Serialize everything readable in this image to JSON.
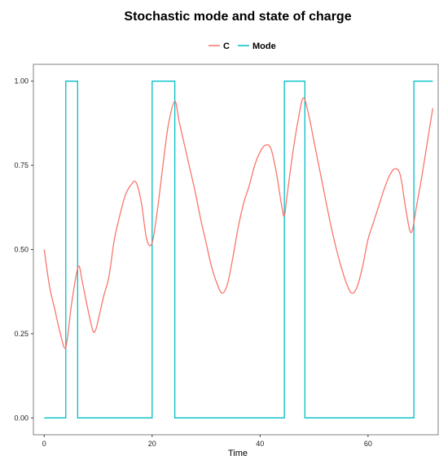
{
  "chart_data": {
    "type": "line",
    "title": "Stochastic mode and state of charge",
    "xlabel": "Time",
    "ylabel": "",
    "xlim": [
      -2,
      73
    ],
    "ylim": [
      -0.05,
      1.05
    ],
    "x_ticks": [
      0,
      20,
      40,
      60
    ],
    "x_tick_labels": [
      "0",
      "20",
      "40",
      "60"
    ],
    "y_ticks": [
      0.0,
      0.25,
      0.5,
      0.75,
      1.0
    ],
    "y_tick_labels": [
      "0.00",
      "0.25",
      "0.50",
      "0.75",
      "1.00"
    ],
    "legend_position": "top",
    "grid": false,
    "series": [
      {
        "name": "C",
        "color": "#F8766D",
        "x": [
          0,
          1,
          2,
          3,
          4,
          5,
          6,
          6.5,
          7,
          8,
          9,
          9.5,
          10,
          11,
          12,
          13,
          14,
          15,
          16,
          17,
          18,
          19,
          20,
          21,
          22,
          23,
          24.2,
          25,
          26,
          27,
          28,
          29,
          30,
          31,
          32,
          33,
          34,
          35,
          36,
          37,
          38,
          39,
          40,
          41,
          42,
          43,
          44,
          44.5,
          45,
          46,
          47,
          48,
          49,
          50,
          51,
          52,
          53,
          54,
          55,
          56,
          57,
          58,
          59,
          60,
          61,
          62,
          63,
          64,
          65,
          66,
          67,
          68,
          69,
          70,
          71,
          72
        ],
        "values": [
          0.5,
          0.39,
          0.32,
          0.25,
          0.21,
          0.33,
          0.43,
          0.45,
          0.41,
          0.33,
          0.26,
          0.26,
          0.29,
          0.36,
          0.42,
          0.53,
          0.6,
          0.66,
          0.69,
          0.7,
          0.64,
          0.53,
          0.52,
          0.62,
          0.75,
          0.87,
          0.94,
          0.88,
          0.81,
          0.74,
          0.67,
          0.59,
          0.52,
          0.45,
          0.4,
          0.37,
          0.4,
          0.48,
          0.57,
          0.64,
          0.69,
          0.75,
          0.79,
          0.81,
          0.8,
          0.73,
          0.63,
          0.6,
          0.66,
          0.78,
          0.88,
          0.95,
          0.9,
          0.82,
          0.74,
          0.66,
          0.58,
          0.51,
          0.45,
          0.4,
          0.37,
          0.39,
          0.45,
          0.53,
          0.58,
          0.63,
          0.68,
          0.72,
          0.74,
          0.72,
          0.62,
          0.55,
          0.63,
          0.72,
          0.82,
          0.92
        ]
      },
      {
        "name": "Mode",
        "color": "#00BFC4",
        "x": [
          0,
          4,
          4,
          6.2,
          6.2,
          20,
          20,
          24.2,
          24.2,
          44.5,
          44.5,
          48.3,
          48.3,
          68.5,
          68.5,
          72
        ],
        "values": [
          0,
          0,
          1,
          1,
          0,
          0,
          1,
          1,
          0,
          0,
          1,
          1,
          0,
          0,
          1,
          1
        ]
      }
    ]
  }
}
